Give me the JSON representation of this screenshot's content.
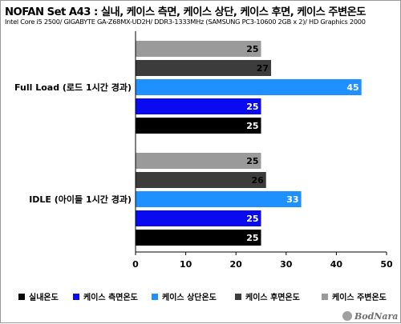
{
  "chart_data": {
    "type": "bar",
    "orientation": "horizontal",
    "title": "NOFAN Set A43 : 실내, 케이스 측면, 케이스 상단, 케이스 후면, 케이스 주변온도",
    "subtitle": "Intel Core i5 2500/ GIGABYTE GA-Z68MX-UD2H/ DDR3-1333MHz (SAMSUNG PC3-10600 2GB x 2)/ HD Graphics 2000",
    "categories": [
      "Full Load (로드 1시간 경과)",
      "IDLE (아이들 1시간 경과)"
    ],
    "series": [
      {
        "name": "실내온도",
        "color": "#000000",
        "values": [
          25,
          25
        ]
      },
      {
        "name": "케이스 측면온도",
        "color": "#0a0af0",
        "values": [
          25,
          25
        ]
      },
      {
        "name": "케이스 상단온도",
        "color": "#1e90ff",
        "values": [
          45,
          33
        ]
      },
      {
        "name": "케이스 후면온도",
        "color": "#3c3c3c",
        "values": [
          27,
          26
        ]
      },
      {
        "name": "케이스 주변온도",
        "color": "#9a9a9a",
        "values": [
          25,
          25
        ]
      }
    ],
    "xlim": [
      0,
      50
    ],
    "xticks": [
      0,
      10,
      20,
      30,
      40,
      50
    ],
    "grid": false,
    "legend_position": "bottom"
  },
  "logo": "BodNara"
}
